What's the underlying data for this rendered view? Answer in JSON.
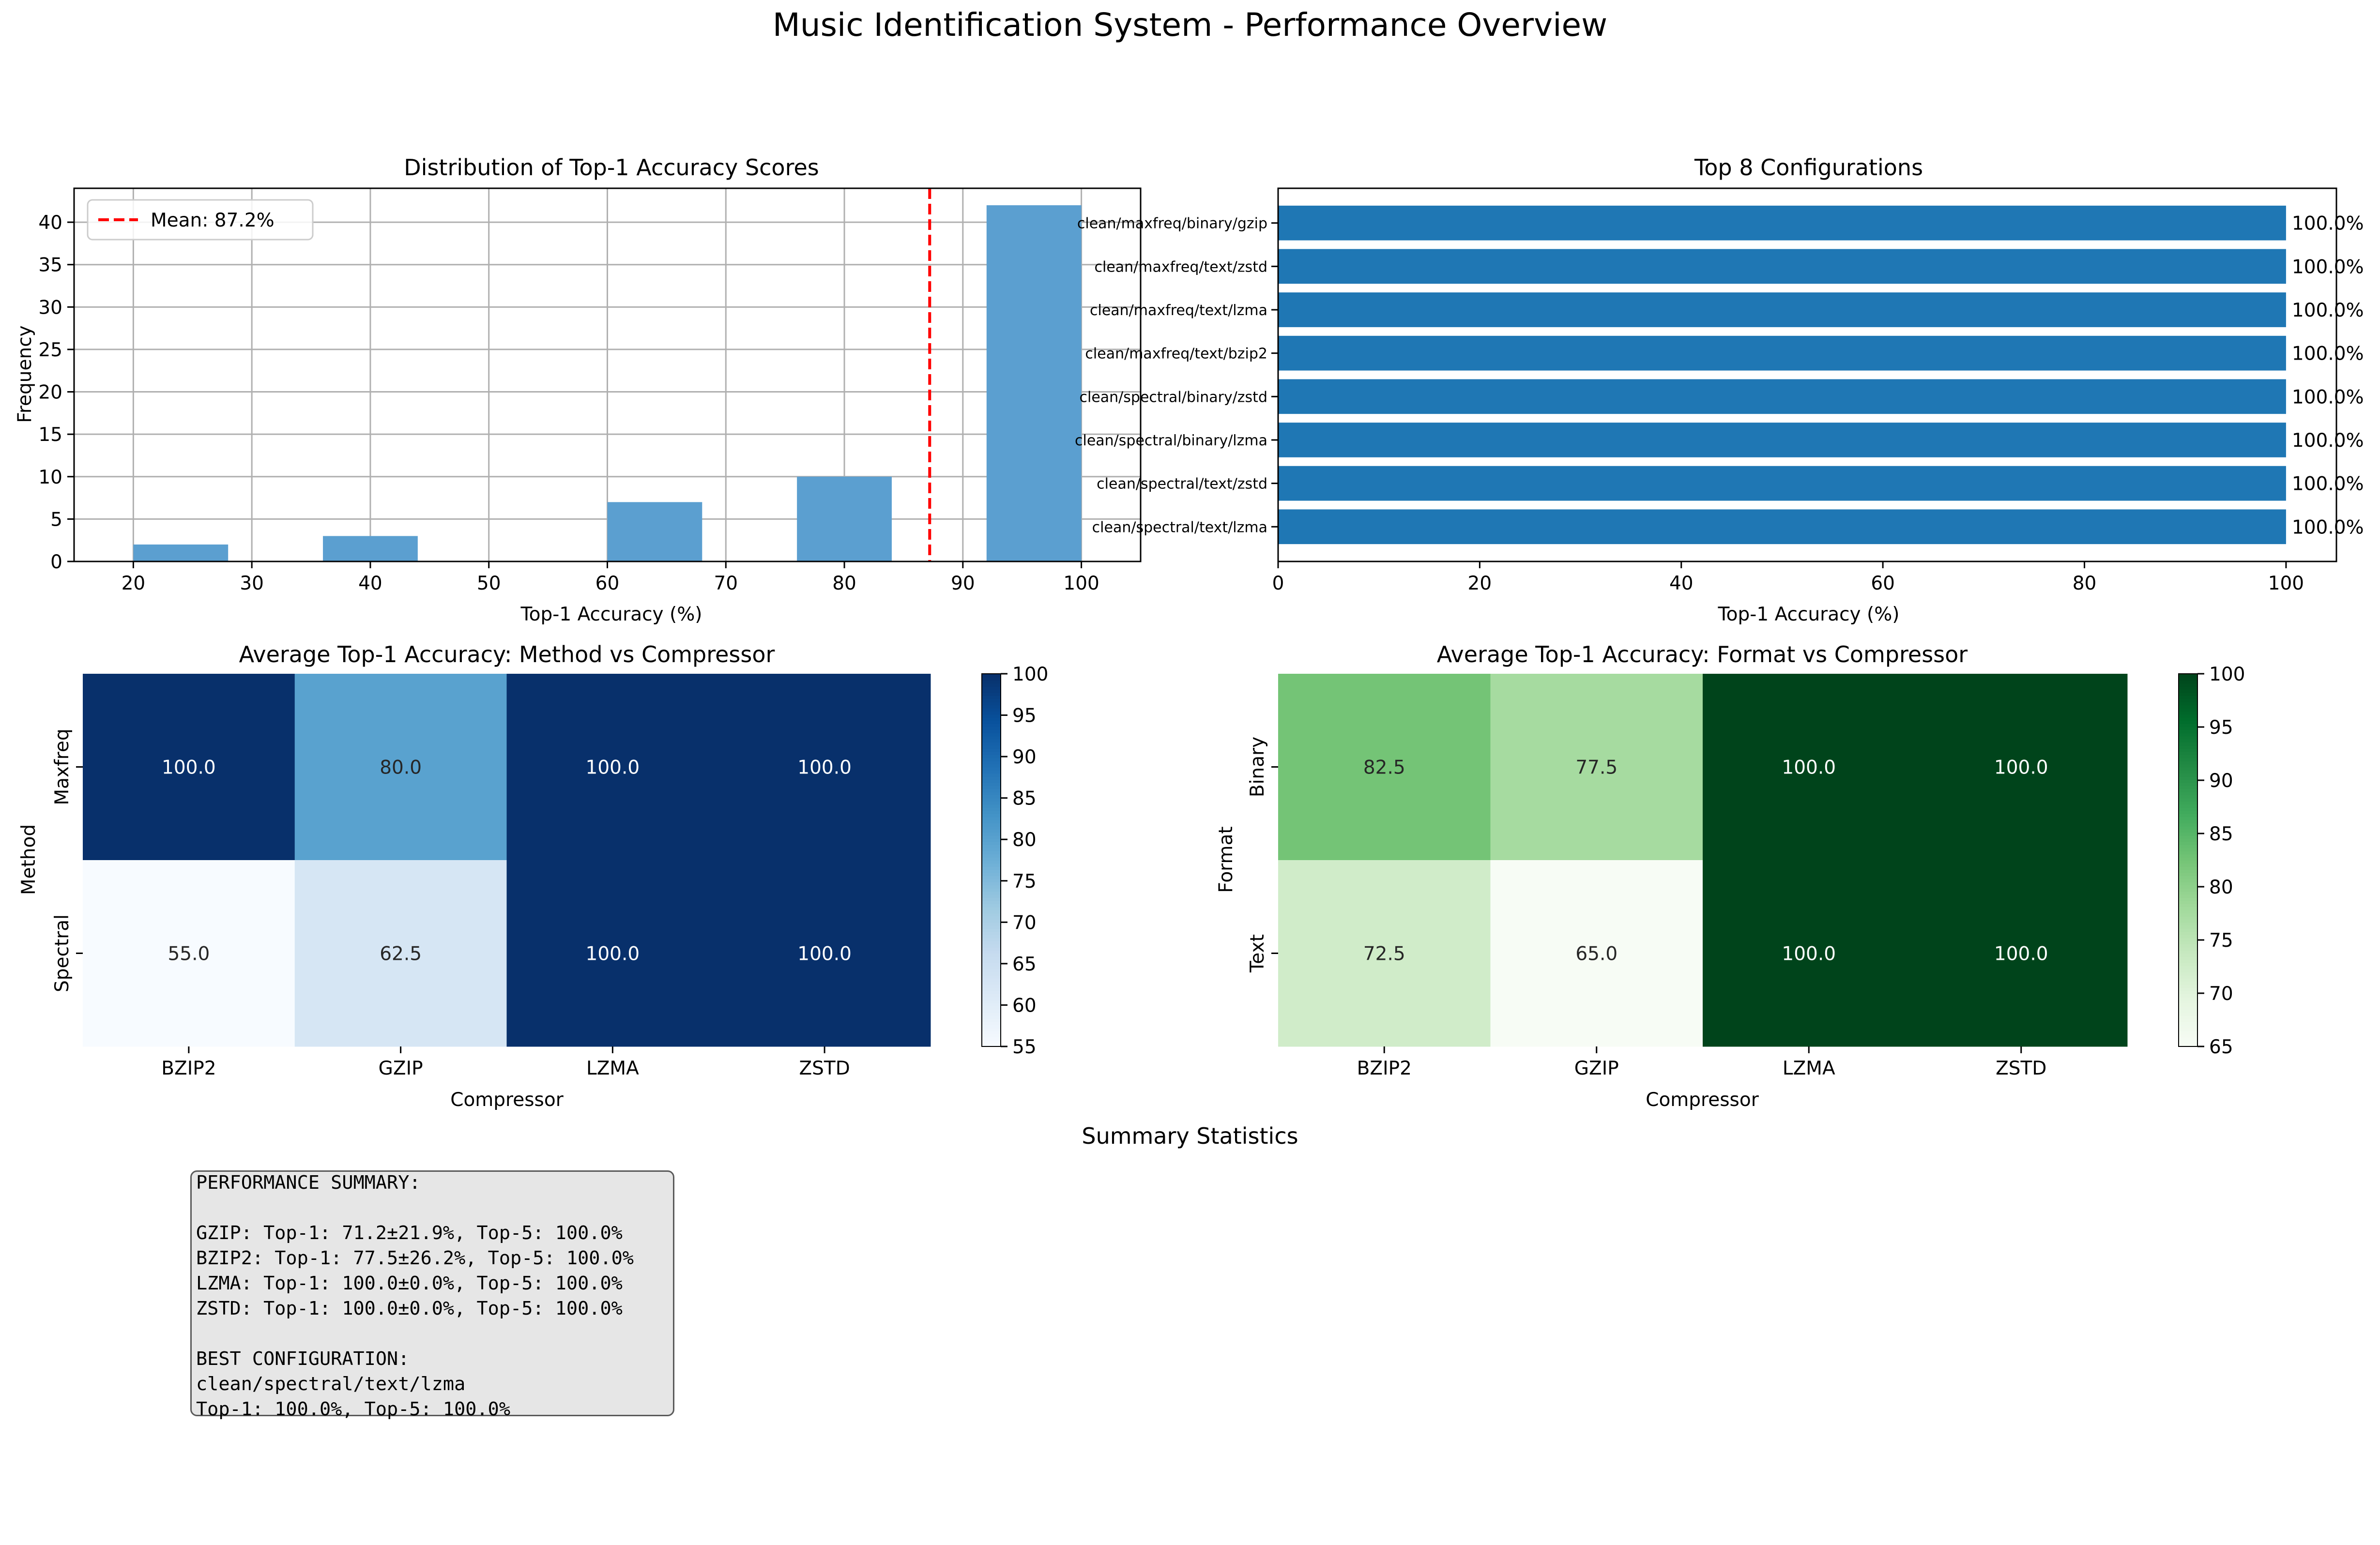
{
  "figure_title": "Music Identification System - Performance Overview",
  "chart_data": [
    {
      "type": "histogram",
      "title": "Distribution of Top-1 Accuracy Scores",
      "xlabel": "Top-1 Accuracy (%)",
      "ylabel": "Frequency",
      "xlim": [
        15,
        105
      ],
      "ylim": [
        0,
        44
      ],
      "xticks": [
        20,
        30,
        40,
        50,
        60,
        70,
        80,
        90,
        100
      ],
      "yticks": [
        0,
        5,
        10,
        15,
        20,
        25,
        30,
        35,
        40
      ],
      "grid": true,
      "bins": [
        {
          "start": 20,
          "end": 28,
          "count": 2
        },
        {
          "start": 36,
          "end": 44,
          "count": 3
        },
        {
          "start": 60,
          "end": 68,
          "count": 7
        },
        {
          "start": 76,
          "end": 84,
          "count": 10
        },
        {
          "start": 92,
          "end": 100,
          "count": 42
        }
      ],
      "mean_line": {
        "value": 87.2,
        "label": "Mean: 87.2%",
        "color": "#ff0000"
      },
      "legend_position": "top-left",
      "bar_color": "#5b9fd0"
    },
    {
      "type": "bar",
      "orientation": "horizontal",
      "title": "Top 8 Configurations",
      "xlabel": "Top-1 Accuracy (%)",
      "xlim": [
        0,
        105
      ],
      "xticks": [
        0,
        20,
        40,
        60,
        80,
        100
      ],
      "categories": [
        "clean/maxfreq/binary/gzip",
        "clean/maxfreq/text/zstd",
        "clean/maxfreq/text/lzma",
        "clean/maxfreq/text/bzip2",
        "clean/spectral/binary/zstd",
        "clean/spectral/binary/lzma",
        "clean/spectral/text/zstd",
        "clean/spectral/text/lzma"
      ],
      "values": [
        100.0,
        100.0,
        100.0,
        100.0,
        100.0,
        100.0,
        100.0,
        100.0
      ],
      "value_labels": [
        "100.0%",
        "100.0%",
        "100.0%",
        "100.0%",
        "100.0%",
        "100.0%",
        "100.0%",
        "100.0%"
      ],
      "bar_color": "#1f77b4"
    },
    {
      "type": "heatmap",
      "title": "Average Top-1 Accuracy: Method vs Compressor",
      "xlabel": "Compressor",
      "ylabel": "Method",
      "columns": [
        "BZIP2",
        "GZIP",
        "LZMA",
        "ZSTD"
      ],
      "rows": [
        "Maxfreq",
        "Spectral"
      ],
      "values": [
        [
          100.0,
          80.0,
          100.0,
          100.0
        ],
        [
          55.0,
          62.5,
          100.0,
          100.0
        ]
      ],
      "cell_labels": [
        [
          "100.0",
          "80.0",
          "100.0",
          "100.0"
        ],
        [
          "55.0",
          "62.5",
          "100.0",
          "100.0"
        ]
      ],
      "colormap": "Blues",
      "vmin": 55,
      "vmax": 100,
      "colorbar_ticks": [
        55,
        60,
        65,
        70,
        75,
        80,
        85,
        90,
        95,
        100
      ]
    },
    {
      "type": "heatmap",
      "title": "Average Top-1 Accuracy: Format vs Compressor",
      "xlabel": "Compressor",
      "ylabel": "Format",
      "columns": [
        "BZIP2",
        "GZIP",
        "LZMA",
        "ZSTD"
      ],
      "rows": [
        "Binary",
        "Text"
      ],
      "values": [
        [
          82.5,
          77.5,
          100.0,
          100.0
        ],
        [
          72.5,
          65.0,
          100.0,
          100.0
        ]
      ],
      "cell_labels": [
        [
          "82.5",
          "77.5",
          "100.0",
          "100.0"
        ],
        [
          "72.5",
          "65.0",
          "100.0",
          "100.0"
        ]
      ],
      "colormap": "Greens",
      "vmin": 65,
      "vmax": 100,
      "colorbar_ticks": [
        65,
        70,
        75,
        80,
        85,
        90,
        95,
        100
      ]
    }
  ],
  "summary": {
    "title": "Summary Statistics",
    "text": "PERFORMANCE SUMMARY:\n\nGZIP: Top-1: 71.2±21.9%, Top-5: 100.0%\nBZIP2: Top-1: 77.5±26.2%, Top-5: 100.0%\nLZMA: Top-1: 100.0±0.0%, Top-5: 100.0%\nZSTD: Top-1: 100.0±0.0%, Top-5: 100.0%\n\nBEST CONFIGURATION:\nclean/spectral/text/lzma\nTop-1: 100.0%, Top-5: 100.0%"
  }
}
